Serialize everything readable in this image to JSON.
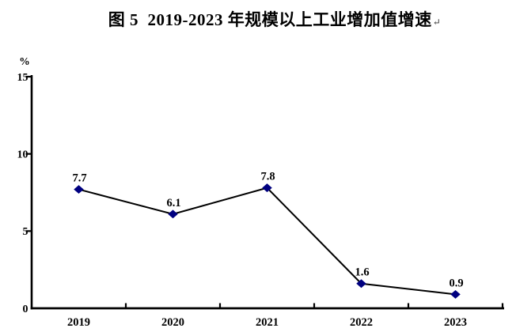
{
  "title": {
    "text": "图 5  2019-2023 年规模以上工业增加值增速",
    "return_mark": "↵"
  },
  "chart_data": {
    "type": "line",
    "title": "图 5  2019-2023 年规模以上工业增加值增速",
    "categories": [
      "2019",
      "2020",
      "2021",
      "2022",
      "2023"
    ],
    "values": [
      7.7,
      6.1,
      7.8,
      1.6,
      0.9
    ],
    "data_labels": [
      "7.7",
      "6.1",
      "7.8",
      "1.6",
      "0.9"
    ],
    "xlabel": "",
    "ylabel": "%",
    "ylim": [
      0,
      15
    ],
    "yticks": [
      0,
      5,
      10,
      15
    ],
    "grid": false,
    "legend_position": "none",
    "x_tick_style": "between-categories",
    "line_color": "#000000",
    "marker": "diamond",
    "marker_color": "#000080",
    "axis_color": "#000000",
    "text_color": "#000000"
  }
}
